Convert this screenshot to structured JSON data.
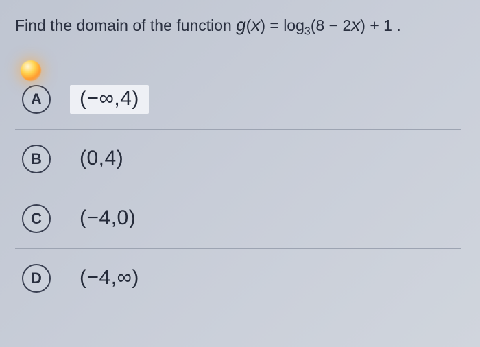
{
  "question_prefix": "Find the domain of the function ",
  "question_math_html": "<span class='math'>g</span>(<span class='math'>x</span>) = log<span class='sub'>3</span>(8 − 2<span class='math'>x</span>) + 1",
  "question_suffix": " .",
  "options": [
    {
      "letter": "A",
      "text": "(−∞,4)",
      "selected": true
    },
    {
      "letter": "B",
      "text": "(0,4)",
      "selected": false
    },
    {
      "letter": "C",
      "text": "(−4,0)",
      "selected": false
    },
    {
      "letter": "D",
      "text": "(−4,∞)",
      "selected": false
    }
  ],
  "colors": {
    "bg_start": "#bfc5d1",
    "bg_end": "#d0d5dd",
    "text": "#2a3040",
    "divider": "#9da4b2",
    "selected_bg": "#eef0f5",
    "circle_border": "#3a4052"
  }
}
